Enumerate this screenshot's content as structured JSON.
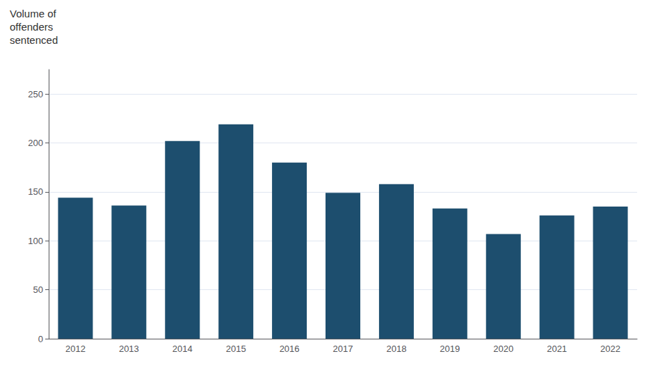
{
  "chart_data": {
    "type": "bar",
    "ylabel": "Volume of\noffenders\nsentenced",
    "categories": [
      "2012",
      "2013",
      "2014",
      "2015",
      "2016",
      "2017",
      "2018",
      "2019",
      "2020",
      "2021",
      "2022"
    ],
    "values": [
      144,
      136,
      202,
      219,
      180,
      149,
      158,
      133,
      107,
      126,
      135
    ],
    "color": "#1d4e6e",
    "ylim": [
      0,
      275
    ],
    "yticks": [
      0,
      50,
      100,
      150,
      200,
      250
    ],
    "grid": true
  }
}
